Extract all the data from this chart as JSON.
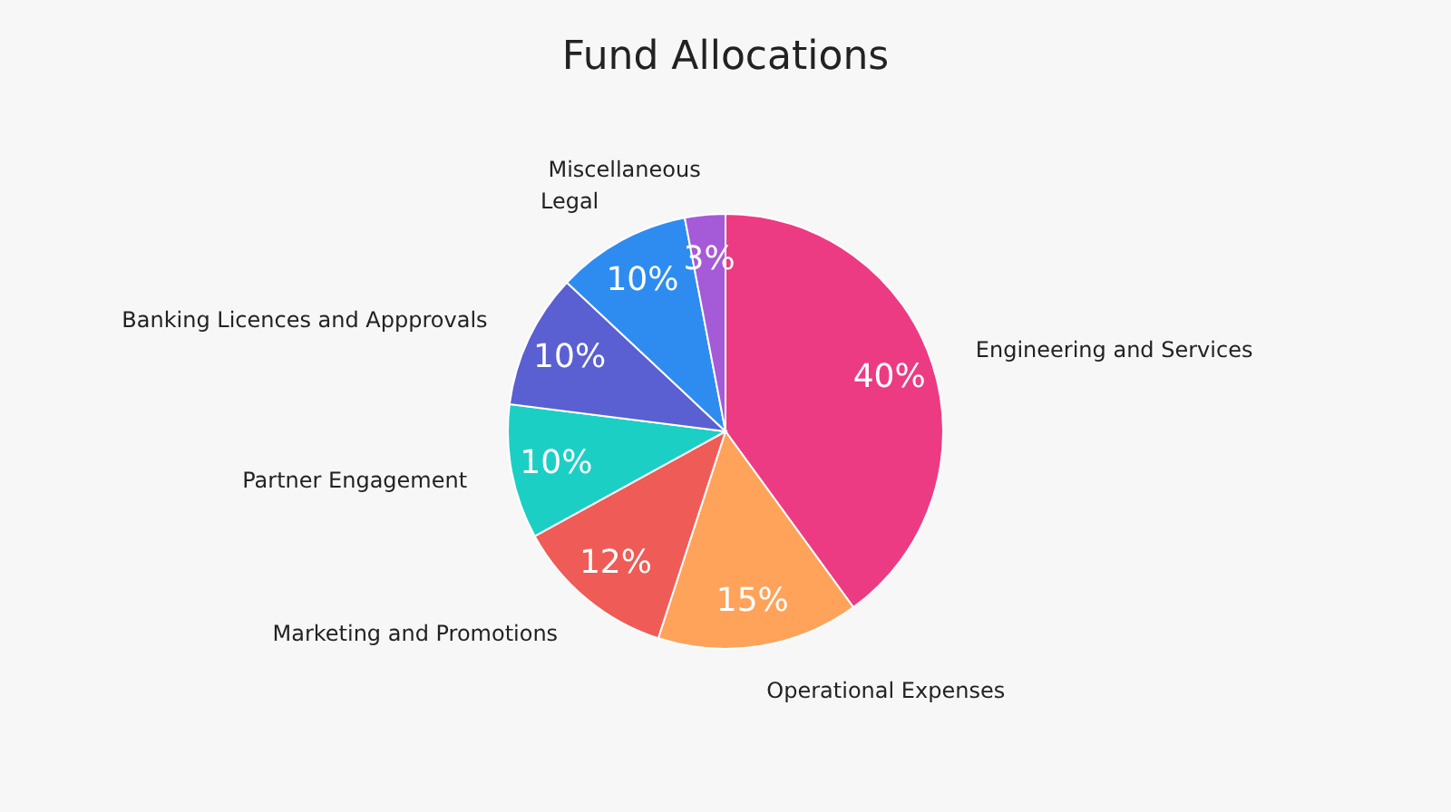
{
  "chart_data": {
    "type": "pie",
    "title": "Fund Allocations",
    "categories": [
      "Engineering and Services",
      "Operational Expenses",
      "Marketing and Promotions",
      "Partner Engagement",
      "Banking Licences and Appprovals",
      "Legal",
      "Miscellaneous"
    ],
    "values": [
      40,
      15,
      12,
      10,
      10,
      10,
      3
    ],
    "colors": [
      "#ec3b83",
      "#ffa35a",
      "#ef5b56",
      "#1ccfc4",
      "#5a5fd1",
      "#2e8cf0",
      "#a55ad8"
    ],
    "value_labels": [
      "40%",
      "15%",
      "12%",
      "10%",
      "10%",
      "10%",
      "3%"
    ]
  }
}
